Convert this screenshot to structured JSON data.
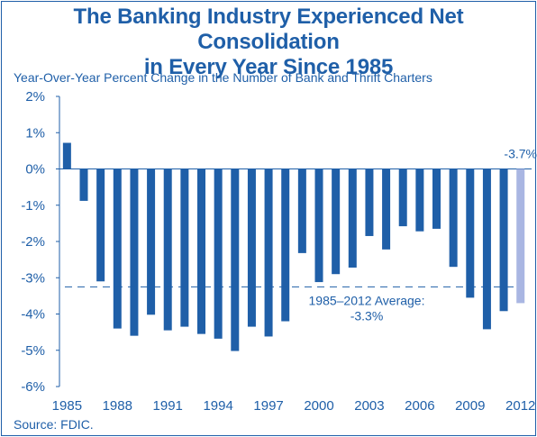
{
  "title_line1": "The Banking Industry Experienced Net Consolidation",
  "title_line2": "in Every Year Since 1985",
  "subtitle": "Year-Over-Year Percent Change in the Number of Bank and Thrift Charters",
  "source": "Source: FDIC.",
  "colors": {
    "text": "#1f5fa8",
    "bar": "#1f5fa8",
    "bar_highlight": "#a9b6e2",
    "frame": "#1f5fa8"
  },
  "chart_data": {
    "type": "bar",
    "title": "The Banking Industry Experienced Net Consolidation in Every Year Since 1985",
    "ylabel": "Year-Over-Year Percent Change in the Number of Bank and Thrift Charters",
    "ylim": [
      -6,
      2
    ],
    "y_ticks": [
      2,
      1,
      0,
      -1,
      -2,
      -3,
      -4,
      -5,
      -6
    ],
    "y_tick_labels": [
      "2%",
      "1%",
      "0%",
      "-1%",
      "-2%",
      "-3%",
      "-4%",
      "-5%",
      "-6%"
    ],
    "x_tick_labels": [
      "1985",
      "1988",
      "1991",
      "1994",
      "1997",
      "2000",
      "2003",
      "2006",
      "2009",
      "2012"
    ],
    "categories": [
      "1985",
      "1986",
      "1987",
      "1988",
      "1989",
      "1990",
      "1991",
      "1992",
      "1993",
      "1994",
      "1995",
      "1996",
      "1997",
      "1998",
      "1999",
      "2000",
      "2001",
      "2002",
      "2003",
      "2004",
      "2005",
      "2006",
      "2007",
      "2008",
      "2009",
      "2010",
      "2011",
      "2012"
    ],
    "values": [
      0.72,
      -0.88,
      -3.1,
      -4.4,
      -4.6,
      -4.02,
      -4.45,
      -4.35,
      -4.55,
      -4.68,
      -5.02,
      -4.35,
      -4.62,
      -4.2,
      -2.32,
      -3.12,
      -2.9,
      -2.72,
      -1.85,
      -2.22,
      -1.58,
      -1.72,
      -1.65,
      -2.7,
      -3.55,
      -4.42,
      -3.92,
      -3.7
    ],
    "highlight_category": "2012",
    "average": {
      "value": -3.25,
      "label_line1": "1985–2012 Average:",
      "label_line2": "-3.3%"
    },
    "annotations": [
      {
        "text": "-3.7%",
        "category": "2012"
      }
    ],
    "grid": false
  }
}
